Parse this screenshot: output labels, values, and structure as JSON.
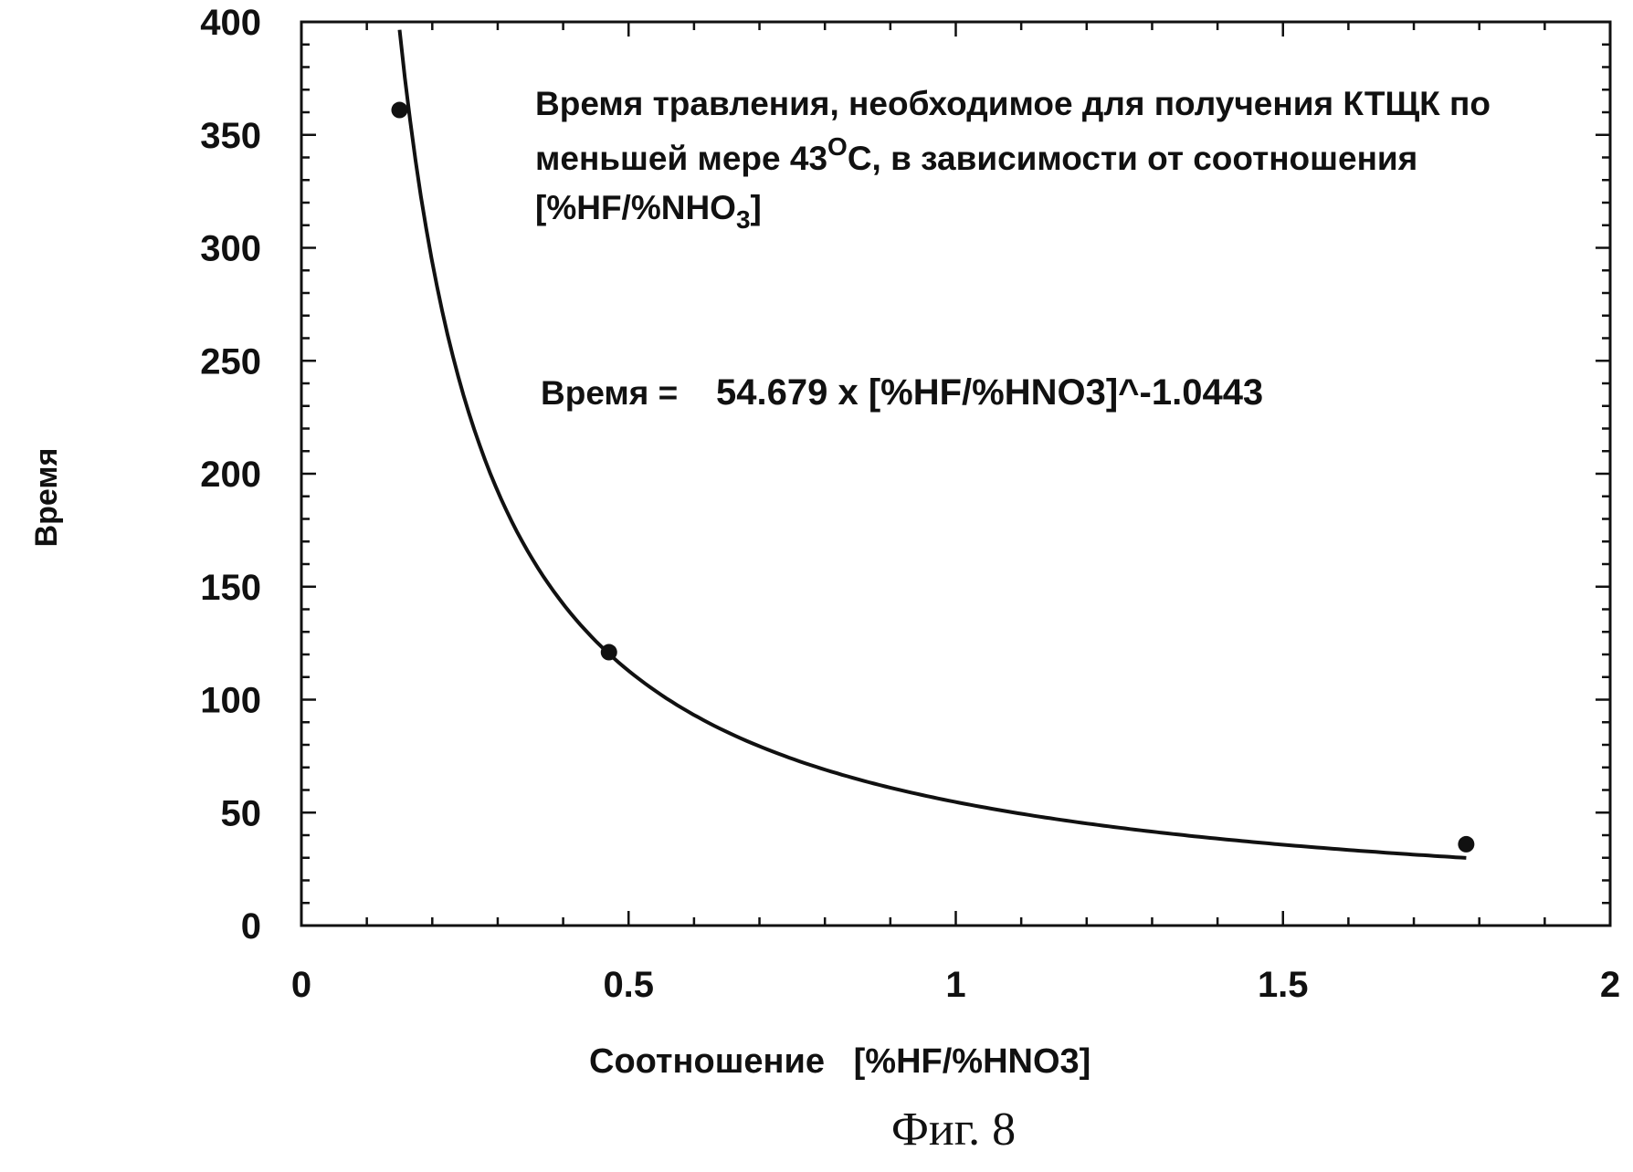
{
  "chart_data": {
    "type": "line",
    "title": "",
    "xlabel": "Соотношение   [%HF/%HNO3]",
    "ylabel": "Время",
    "xlim": [
      0,
      2
    ],
    "ylim": [
      0,
      400
    ],
    "x_ticks": [
      "0",
      "0.5",
      "1",
      "1.5",
      "2"
    ],
    "y_ticks": [
      "0",
      "50",
      "100",
      "150",
      "200",
      "250",
      "300",
      "350",
      "400"
    ],
    "grid": false,
    "legend": "none",
    "annotation": {
      "line1": "Время травления, необходимое для получения КТЩК по",
      "line2_a": "меньшей мере 43",
      "line2_sup": "O",
      "line2_b": "С, в зависимости от соотношения",
      "line3_a": "[%HF/%NHO",
      "line3_sub": "3",
      "line3_b": "]"
    },
    "equation_label": "Время =",
    "equation": "54.679 x [%HF/%HNO3]^-1.0443",
    "fit": {
      "coefficient": 54.679,
      "exponent": -1.0443
    },
    "series": [
      {
        "x": [
          0.15,
          0.47,
          1.78
        ],
        "y": [
          361,
          121,
          36
        ]
      }
    ]
  },
  "caption": "Фиг. 8"
}
